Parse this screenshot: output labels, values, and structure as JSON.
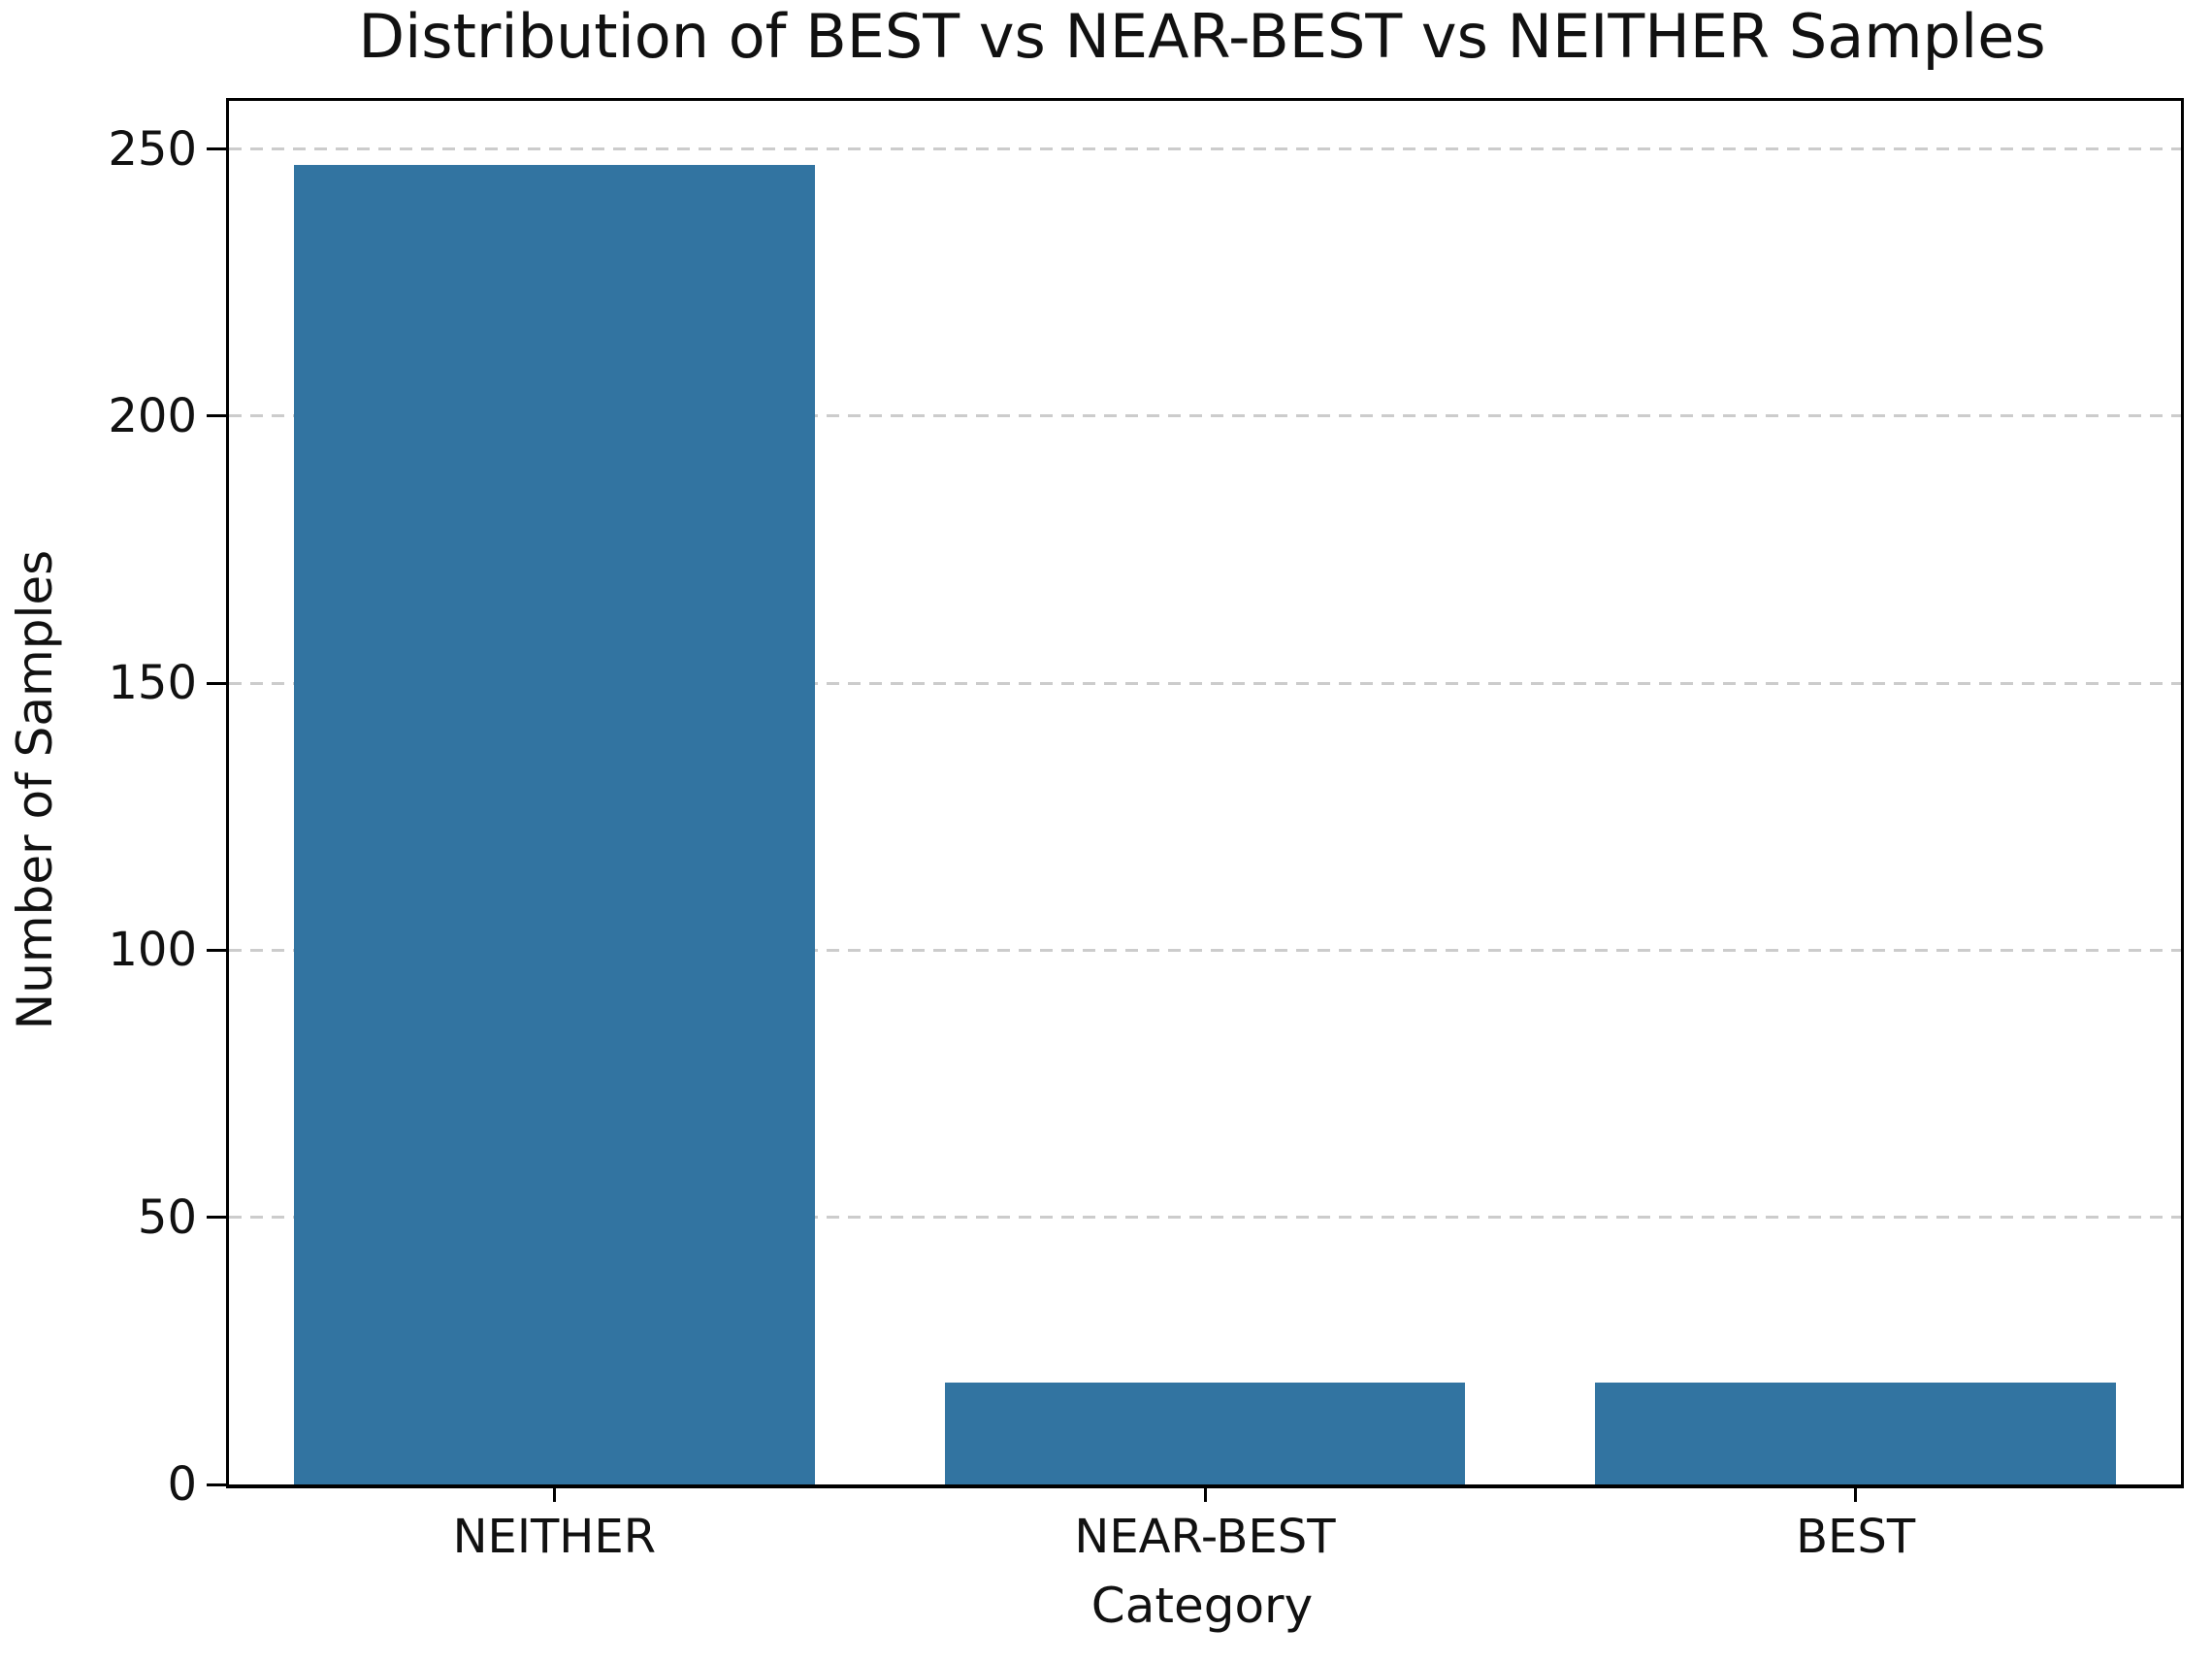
{
  "chart_data": {
    "type": "bar",
    "title": "Distribution of BEST vs NEAR-BEST vs NEITHER Samples",
    "categories": [
      "NEITHER",
      "NEAR-BEST",
      "BEST"
    ],
    "values": [
      247,
      19,
      19
    ],
    "xlabel": "Category",
    "ylabel": "Number of Samples",
    "ylim": [
      0,
      259
    ],
    "yticks": [
      0,
      50,
      100,
      150,
      200,
      250
    ],
    "bar_width_fraction": 0.8,
    "grid": "horizontal-dashed",
    "legend": "none",
    "colors": {
      "bar": "#3274a1",
      "grid": "#cccccc",
      "spine": "#000000",
      "text": "#111111",
      "background": "#ffffff"
    }
  }
}
